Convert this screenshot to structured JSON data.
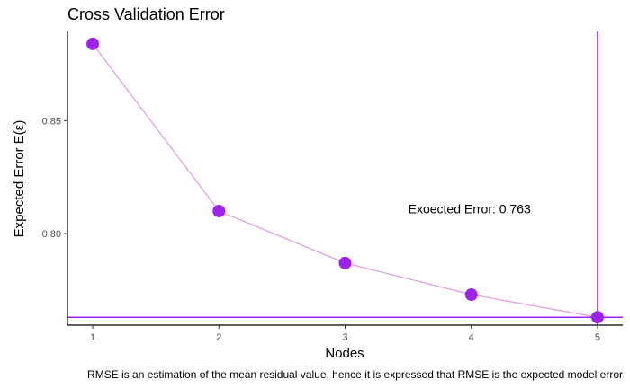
{
  "chart_data": {
    "type": "line",
    "title": "Cross Validation Error",
    "xlabel": "Nodes",
    "ylabel": "Expected Error",
    "ylabel_symbol": "E(ε)",
    "x": [
      1,
      2,
      3,
      4,
      5
    ],
    "series": [
      {
        "values": [
          0.884,
          0.81,
          0.787,
          0.773,
          0.763
        ]
      }
    ],
    "xlim": [
      0.8,
      5.2
    ],
    "ylim": [
      0.7595,
      0.8895
    ],
    "x_ticks": [
      1,
      2,
      3,
      4,
      5
    ],
    "y_ticks": [
      0.8,
      0.85
    ],
    "y_tick_labels": [
      "0.80",
      "0.85"
    ],
    "reference_lines": {
      "vertical_x": 5,
      "horizontal_y": 0.763
    },
    "annotation": {
      "text": "Exoected Error:  0.763",
      "x": 3.5,
      "y": 0.811
    },
    "caption": "RMSE is an estimation of the mean residual value, hence it is expressed that RMSE is the expected model error",
    "colors": {
      "line": "#dda0dd",
      "point": "#a020f0",
      "ref_line": "#a020f0"
    },
    "grid": false,
    "legend": "none"
  }
}
